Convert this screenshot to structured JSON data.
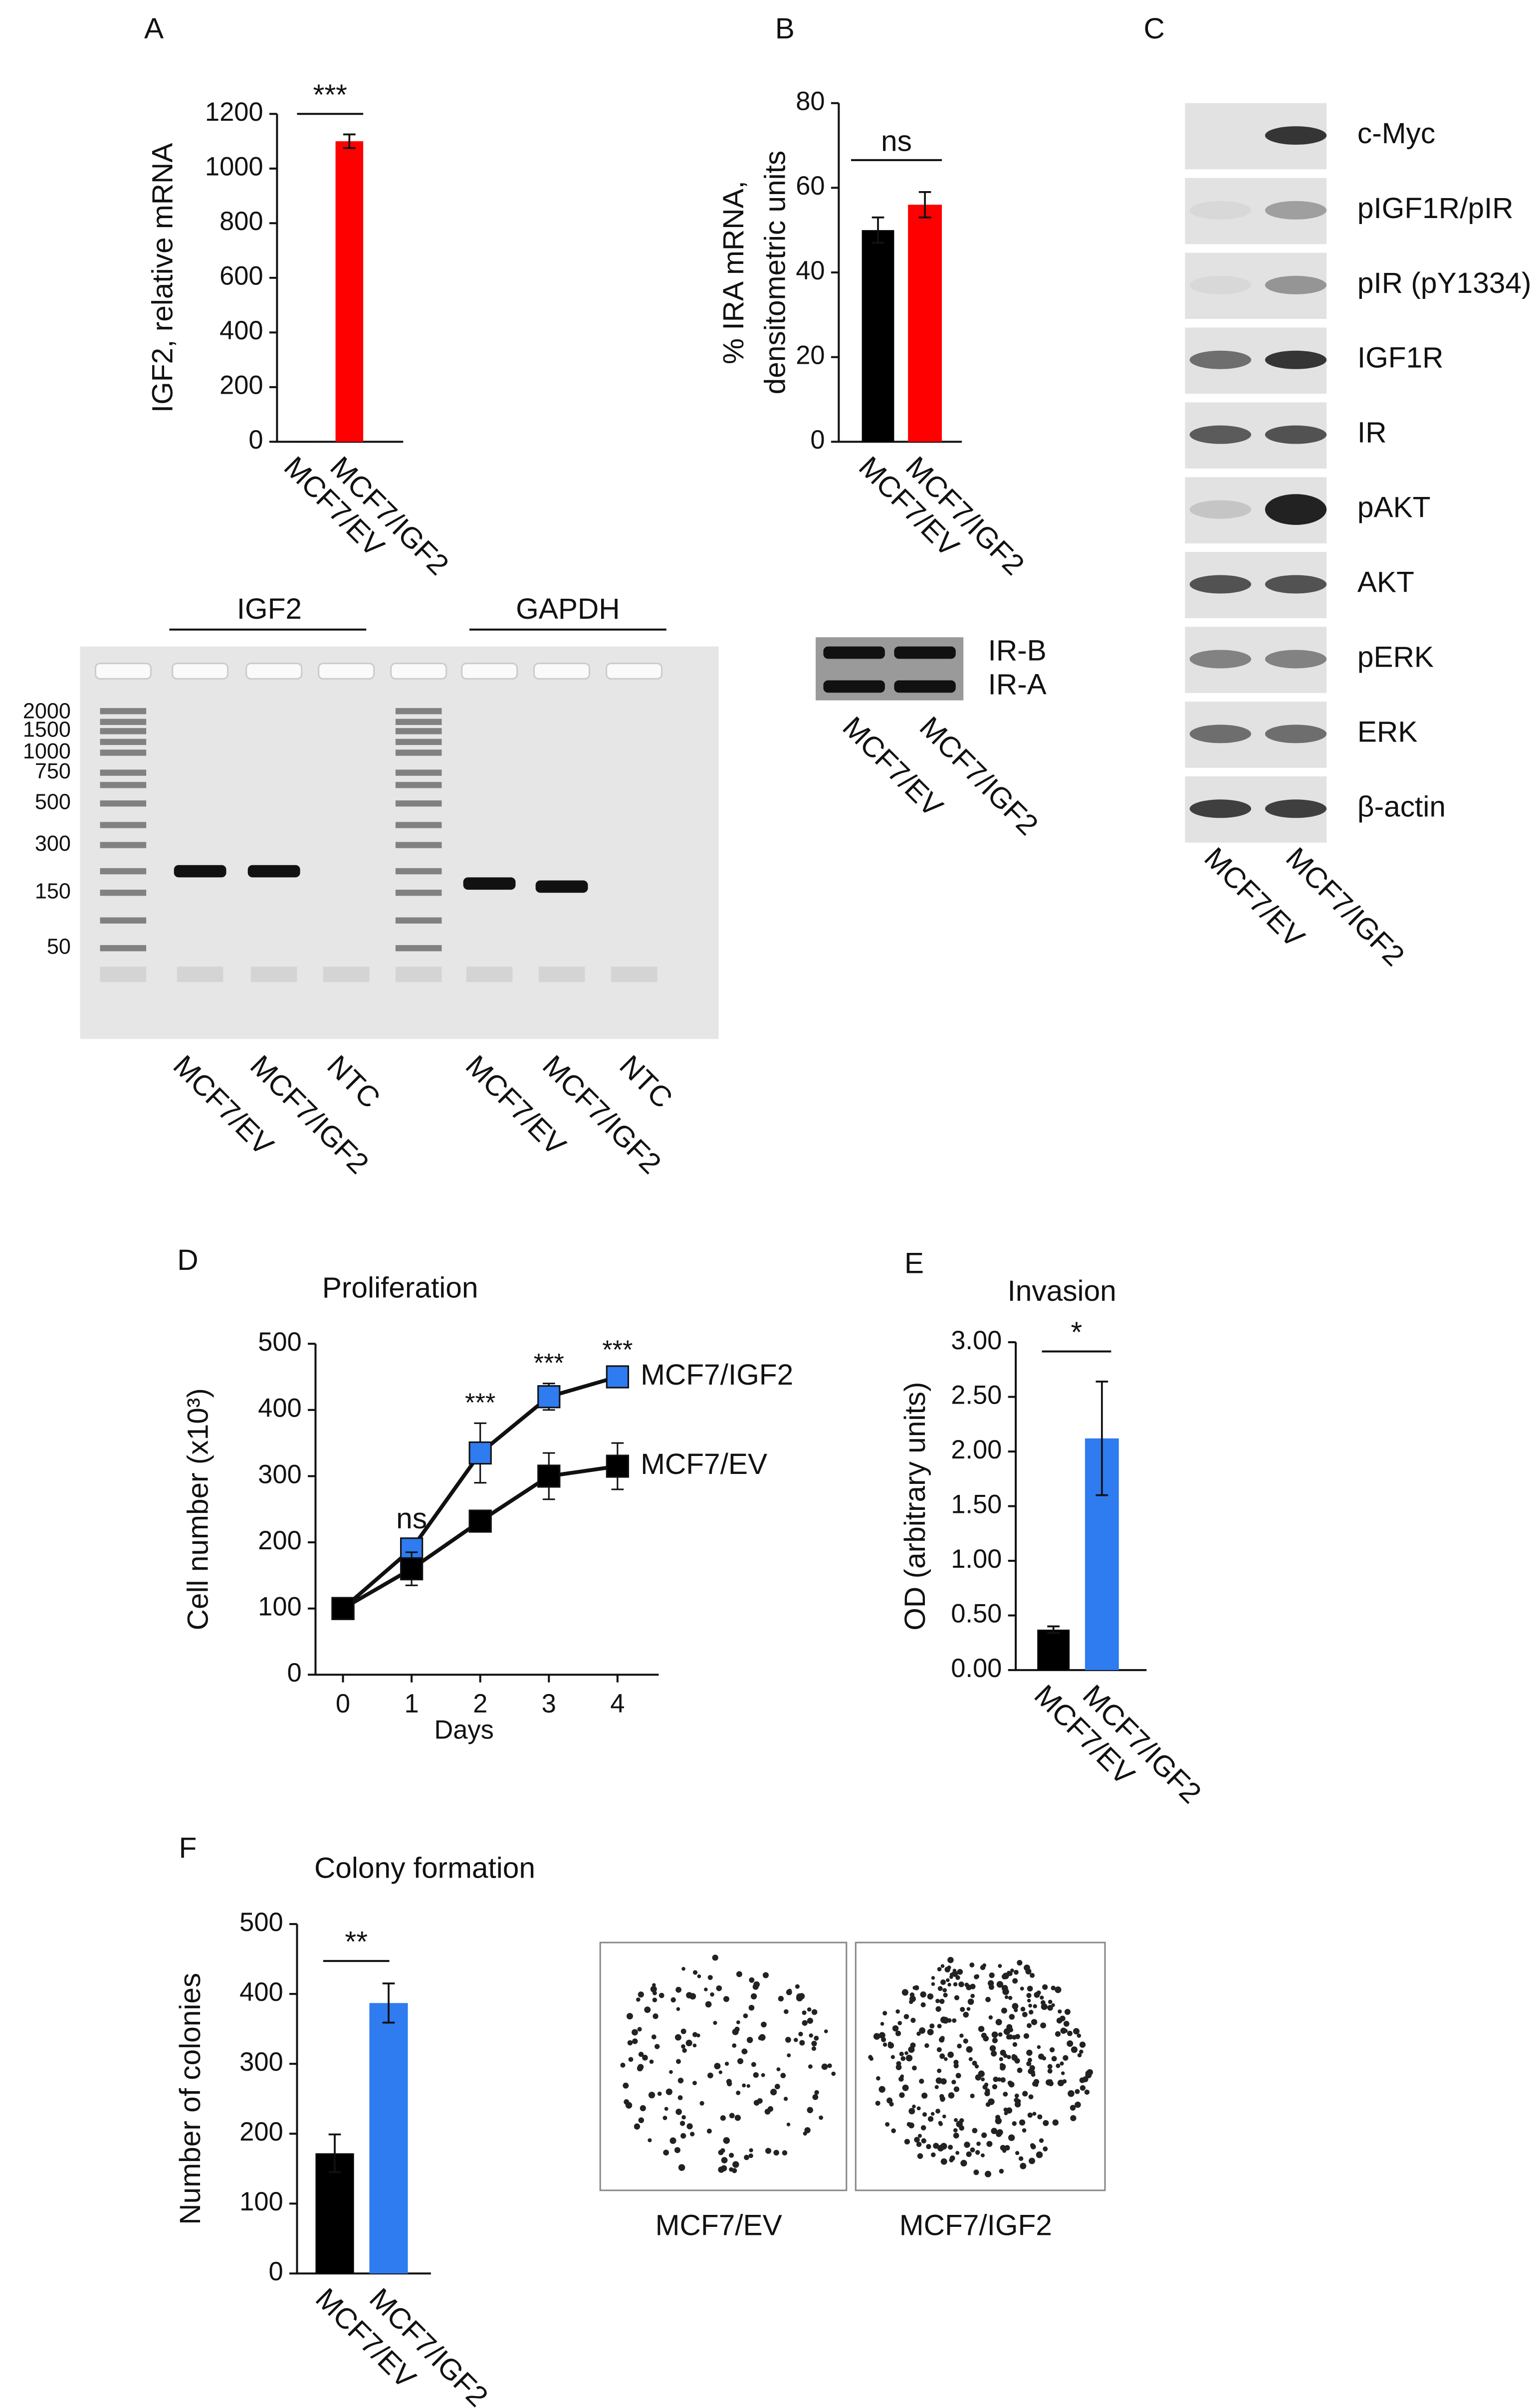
{
  "panels": [
    "A",
    "B",
    "C",
    "D",
    "E",
    "F"
  ],
  "chart_data": [
    {
      "type": "bar",
      "ylabel": "IGF2, relative mRNA",
      "categories": [
        "MCF7/EV",
        "MCF7/IGF2"
      ],
      "values": [
        1,
        1100
      ],
      "errors": [
        0,
        25
      ],
      "colors": [
        "#000000",
        "#ff0000"
      ],
      "ylim": [
        0,
        1200
      ],
      "yticks": [
        0,
        200,
        400,
        600,
        800,
        1000,
        1200
      ],
      "annotation": "***"
    },
    {
      "type": "bar",
      "ylabel": [
        "% IRA mRNA,",
        "densitometric units"
      ],
      "categories": [
        "MCF7/EV",
        "MCF7/IGF2"
      ],
      "values": [
        50,
        56
      ],
      "errors": [
        3,
        3
      ],
      "colors": [
        "#000000",
        "#ff0000"
      ],
      "ylim": [
        0,
        80
      ],
      "yticks": [
        0,
        20,
        40,
        60,
        80
      ],
      "annotation": "ns"
    },
    {
      "type": "line",
      "title": "Proliferation",
      "xlabel": "Days",
      "ylabel": "Cell number (x10³)",
      "x": [
        0,
        1,
        2,
        3,
        4
      ],
      "series": [
        {
          "name": "MCF7/IGF2",
          "color": "#2f7bf0",
          "values": [
            100,
            190,
            335,
            420,
            450
          ],
          "errors": [
            5,
            15,
            45,
            20,
            10
          ]
        },
        {
          "name": "MCF7/EV",
          "color": "#000000",
          "values": [
            100,
            160,
            232,
            300,
            315
          ],
          "errors": [
            5,
            25,
            10,
            35,
            35
          ]
        }
      ],
      "point_labels": [
        null,
        "ns",
        "***",
        "***",
        "***"
      ],
      "xlim": [
        -0.4,
        4.6
      ],
      "xticks": [
        0,
        1,
        2,
        3,
        4
      ],
      "ylim": [
        0,
        500
      ],
      "yticks": [
        0,
        100,
        200,
        300,
        400,
        500
      ]
    },
    {
      "type": "bar",
      "title": "Invasion",
      "ylabel": "OD (arbitrary units)",
      "categories": [
        "MCF7/EV",
        "MCF7/IGF2"
      ],
      "values": [
        0.37,
        2.12
      ],
      "errors": [
        0.03,
        0.52
      ],
      "colors": [
        "#000000",
        "#2f7bf0"
      ],
      "ylim": [
        0,
        3
      ],
      "yticks": [
        {
          "value": 0,
          "label": "0.00"
        },
        {
          "value": 0.5,
          "label": "0.50"
        },
        {
          "value": 1,
          "label": "1.00"
        },
        {
          "value": 1.5,
          "label": "1.50"
        },
        {
          "value": 2,
          "label": "2.00"
        },
        {
          "value": 2.5,
          "label": "2.50"
        },
        {
          "value": 3,
          "label": "3.00"
        }
      ],
      "annotation": "*"
    },
    {
      "type": "bar",
      "title": "Colony formation",
      "ylabel": "Number of colonies",
      "categories": [
        "MCF7/EV",
        "MCF7/IGF2"
      ],
      "values": [
        172,
        387
      ],
      "errors": [
        27,
        28
      ],
      "colors": [
        "#000000",
        "#2f7bf0"
      ],
      "ylim": [
        0,
        500
      ],
      "yticks": [
        0,
        100,
        200,
        300,
        400,
        500
      ],
      "annotation": "**"
    }
  ],
  "gel": {
    "groups": [
      "IGF2",
      "GAPDH"
    ],
    "ladder": [
      "2000",
      "1500",
      "1000",
      "750",
      "500",
      "300",
      "150",
      "50"
    ],
    "lanes": [
      "MCF7/EV",
      "MCF7/IGF2",
      "NTC",
      "MCF7/EV",
      "MCF7/IGF2",
      "NTC"
    ]
  },
  "ir_blot": {
    "bands": [
      "IR-B",
      "IR-A"
    ],
    "lanes": [
      "MCF7/EV",
      "MCF7/IGF2"
    ]
  },
  "western_blot": {
    "proteins": [
      "c-Myc",
      "pIGF1R/pIR",
      "pIR (pY1334)",
      "IGF1R",
      "IR",
      "pAKT",
      "AKT",
      "pERK",
      "ERK",
      "β-actin"
    ],
    "lanes": [
      "MCF7/EV",
      "MCF7/IGF2"
    ]
  },
  "colony_images": {
    "labels": [
      "MCF7/EV",
      "MCF7/IGF2"
    ]
  }
}
